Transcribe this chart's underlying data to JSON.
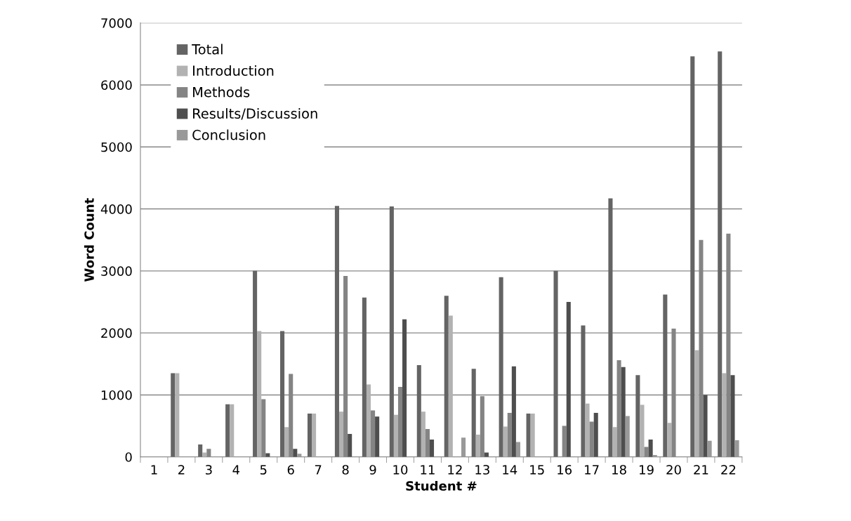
{
  "chart_data": {
    "type": "bar",
    "xlabel": "Student #",
    "ylabel": "Word Count",
    "categories": [
      "1",
      "2",
      "3",
      "4",
      "5",
      "6",
      "7",
      "8",
      "9",
      "10",
      "11",
      "12",
      "13",
      "14",
      "15",
      "16",
      "17",
      "18",
      "19",
      "20",
      "21",
      "22"
    ],
    "series": [
      {
        "name": "Total",
        "color": "#646464",
        "values": [
          0,
          1350,
          200,
          850,
          3000,
          2030,
          700,
          4050,
          2570,
          4040,
          1480,
          2600,
          1420,
          2900,
          700,
          3000,
          2120,
          4170,
          1320,
          2620,
          6460,
          6540
        ]
      },
      {
        "name": "Introduction",
        "color": "#b2b2b2",
        "values": [
          0,
          1350,
          70,
          850,
          2030,
          480,
          700,
          730,
          1170,
          680,
          730,
          2280,
          360,
          490,
          700,
          0,
          860,
          480,
          840,
          550,
          1720,
          1350
        ]
      },
      {
        "name": "Methods",
        "color": "#848484",
        "values": [
          0,
          0,
          130,
          0,
          930,
          1340,
          0,
          2920,
          750,
          1130,
          450,
          0,
          980,
          710,
          0,
          500,
          570,
          1560,
          160,
          2070,
          3500,
          3600
        ]
      },
      {
        "name": "Results/Discussion",
        "color": "#4e4e4e",
        "values": [
          0,
          0,
          0,
          0,
          60,
          130,
          0,
          370,
          650,
          2220,
          280,
          0,
          70,
          1460,
          0,
          2500,
          710,
          1450,
          280,
          0,
          1000,
          1320
        ]
      },
      {
        "name": "Conclusion",
        "color": "#999999",
        "values": [
          0,
          0,
          0,
          0,
          0,
          50,
          0,
          0,
          0,
          0,
          0,
          310,
          0,
          240,
          0,
          0,
          0,
          660,
          30,
          0,
          260,
          270
        ]
      }
    ],
    "ylim": [
      0,
      7000
    ],
    "yticks": [
      0,
      1000,
      2000,
      3000,
      4000,
      5000,
      6000,
      7000
    ],
    "grid": "y",
    "legend": "top left"
  }
}
